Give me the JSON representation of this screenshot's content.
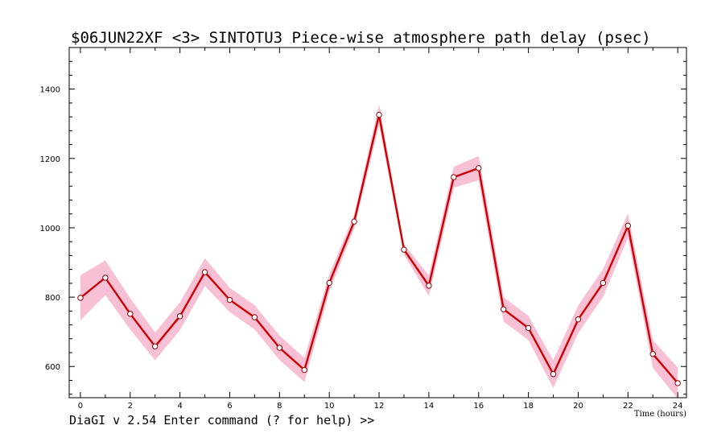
{
  "chart_data": {
    "type": "line",
    "title": "$06JUN22XF <3>  SINTOTU3  Piece-wise atmosphere path delay (psec)",
    "xlabel": "Time (hours)",
    "ylabel": "",
    "xlim": [
      -0.45,
      24.35
    ],
    "ylim": [
      510,
      1520
    ],
    "x_ticks": [
      0,
      2,
      4,
      6,
      8,
      10,
      12,
      14,
      16,
      18,
      20,
      22,
      24
    ],
    "y_ticks": [
      600,
      800,
      1000,
      1200,
      1400
    ],
    "x": [
      0,
      1,
      2,
      3,
      4,
      5,
      6,
      7,
      8,
      9,
      10,
      11,
      12,
      13,
      14,
      15,
      16,
      17,
      18,
      19,
      20,
      21,
      22,
      23,
      24
    ],
    "series": [
      {
        "values": [
          798,
          856,
          752,
          658,
          745,
          872,
          792,
          742,
          654,
          590,
          841,
          1018,
          1326,
          937,
          833,
          1146,
          1172,
          765,
          711,
          578,
          736,
          841,
          1006,
          636,
          552
        ],
        "errors": [
          65,
          50,
          45,
          40,
          40,
          40,
          35,
          35,
          35,
          35,
          25,
          20,
          30,
          15,
          30,
          30,
          35,
          35,
          35,
          40,
          40,
          40,
          35,
          40,
          45
        ],
        "line_color": "#cc0000",
        "band_color": "#f8c0d4",
        "marker": "open-circle"
      }
    ],
    "grid": false,
    "legend": "none"
  },
  "status_bar": {
    "text": "DiaGI v 2.54  Enter command (? for help) >>"
  }
}
